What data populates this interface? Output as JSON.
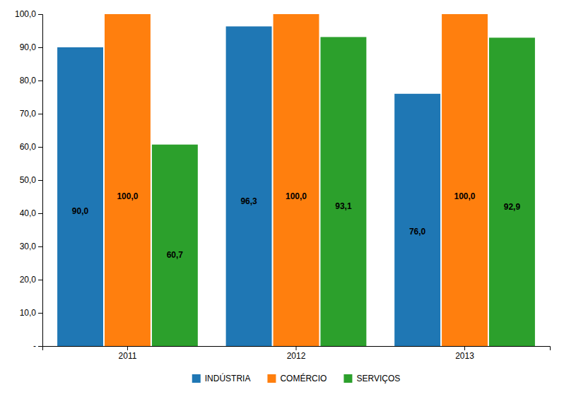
{
  "chart_data": {
    "type": "bar",
    "categories": [
      "2011",
      "2012",
      "2013"
    ],
    "series": [
      {
        "name": "INDÚSTRIA",
        "values": [
          90.0,
          96.3,
          76.0
        ],
        "value_labels": [
          "90,0",
          "96,3",
          "76,0"
        ]
      },
      {
        "name": "COMÉRCIO",
        "values": [
          100.0,
          100.0,
          100.0
        ],
        "value_labels": [
          "100,0",
          "100,0",
          "100,0"
        ]
      },
      {
        "name": "SERVIÇOS",
        "values": [
          60.7,
          93.1,
          92.9
        ],
        "value_labels": [
          "60,7",
          "93,1",
          "92,9"
        ]
      }
    ],
    "ylim": [
      0,
      100
    ],
    "yticks": [
      {
        "value": 0,
        "label": "-"
      },
      {
        "value": 10,
        "label": "10,0"
      },
      {
        "value": 20,
        "label": "20,0"
      },
      {
        "value": 30,
        "label": "30,0"
      },
      {
        "value": 40,
        "label": "40,0"
      },
      {
        "value": 50,
        "label": "50,0"
      },
      {
        "value": 60,
        "label": "60,0"
      },
      {
        "value": 70,
        "label": "70,0"
      },
      {
        "value": 80,
        "label": "80,0"
      },
      {
        "value": 90,
        "label": "90,0"
      },
      {
        "value": 100,
        "label": "100,0"
      }
    ],
    "data_labels": true,
    "legend": "bottom",
    "grid": false
  }
}
